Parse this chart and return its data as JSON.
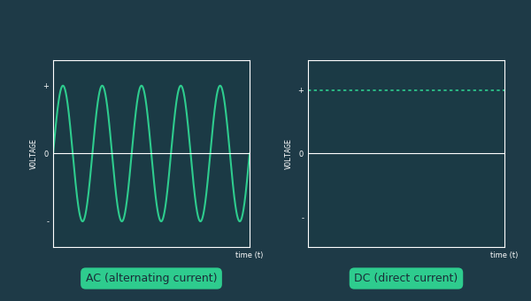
{
  "bg_color": "#1e3a47",
  "axes_bg_color": "#1b3a45",
  "line_color": "#2ecc8e",
  "zero_line_color": "#ffffff",
  "spine_color": "#ffffff",
  "text_color": "#ffffff",
  "label_bg_color": "#2ecc8e",
  "label_text_color": "#1a2e38",
  "ac_label": "AC (alternating current)",
  "dc_label": "DC (direct current)",
  "voltage_label": "VOLTAGE",
  "time_label": "time (t)",
  "ac_freq": 5,
  "ac_amplitude": 0.8,
  "dc_value": 0.75,
  "label_fontsize": 9,
  "axis_label_fontsize": 6,
  "tick_label_fontsize": 6
}
